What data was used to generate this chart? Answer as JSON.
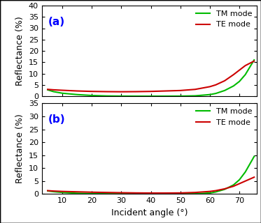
{
  "panel_a": {
    "label": "(a)",
    "ylim": [
      0,
      40
    ],
    "yticks": [
      0,
      5,
      10,
      15,
      20,
      25,
      30,
      35,
      40
    ],
    "TM_angles": [
      5,
      7,
      10,
      15,
      20,
      25,
      30,
      35,
      40,
      45,
      50,
      55,
      60,
      62,
      65,
      68,
      70,
      72,
      75
    ],
    "TM_values": [
      2.8,
      2.0,
      1.3,
      0.7,
      0.3,
      0.1,
      0.03,
      0.01,
      0.005,
      0.01,
      0.03,
      0.15,
      0.7,
      1.2,
      2.5,
      4.5,
      6.5,
      9.5,
      16.0
    ],
    "TE_angles": [
      5,
      7,
      10,
      15,
      20,
      25,
      30,
      35,
      40,
      45,
      50,
      55,
      60,
      62,
      65,
      68,
      70,
      72,
      75
    ],
    "TE_values": [
      3.0,
      2.8,
      2.6,
      2.3,
      2.1,
      2.0,
      1.95,
      2.0,
      2.1,
      2.3,
      2.5,
      3.0,
      4.2,
      5.0,
      6.8,
      9.5,
      11.5,
      13.5,
      15.5
    ]
  },
  "panel_b": {
    "label": "(b)",
    "ylim": [
      0,
      35
    ],
    "yticks": [
      0,
      5,
      10,
      15,
      20,
      25,
      30,
      35
    ],
    "TM_angles": [
      5,
      7,
      10,
      15,
      20,
      25,
      30,
      35,
      40,
      45,
      50,
      55,
      60,
      62,
      65,
      68,
      70,
      72,
      75
    ],
    "TM_values": [
      1.2,
      0.9,
      0.6,
      0.3,
      0.15,
      0.07,
      0.02,
      0.005,
      0.002,
      0.005,
      0.02,
      0.08,
      0.4,
      0.8,
      1.8,
      3.5,
      5.5,
      8.5,
      14.5
    ],
    "TE_angles": [
      5,
      7,
      10,
      15,
      20,
      25,
      30,
      35,
      40,
      45,
      50,
      55,
      60,
      62,
      65,
      68,
      70,
      72,
      75
    ],
    "TE_values": [
      1.3,
      1.15,
      1.0,
      0.85,
      0.7,
      0.6,
      0.5,
      0.42,
      0.38,
      0.38,
      0.42,
      0.6,
      1.0,
      1.3,
      2.0,
      3.0,
      4.0,
      5.0,
      6.5
    ]
  },
  "xlabel": "Incident angle (°)",
  "ylabel": "Reflectance (%)",
  "TM_color": "#00bb00",
  "TE_color": "#cc0000",
  "figure_bg_color": "#ffffff",
  "plot_bg_color": "#ffffff",
  "border_color": "#000000",
  "xticks": [
    10,
    20,
    30,
    40,
    50,
    60,
    70
  ],
  "xlim": [
    3,
    76
  ],
  "linewidth": 1.5,
  "legend_TM": "TM mode",
  "legend_TE": "TE mode",
  "label_fontsize": 9,
  "tick_fontsize": 8,
  "legend_fontsize": 8
}
